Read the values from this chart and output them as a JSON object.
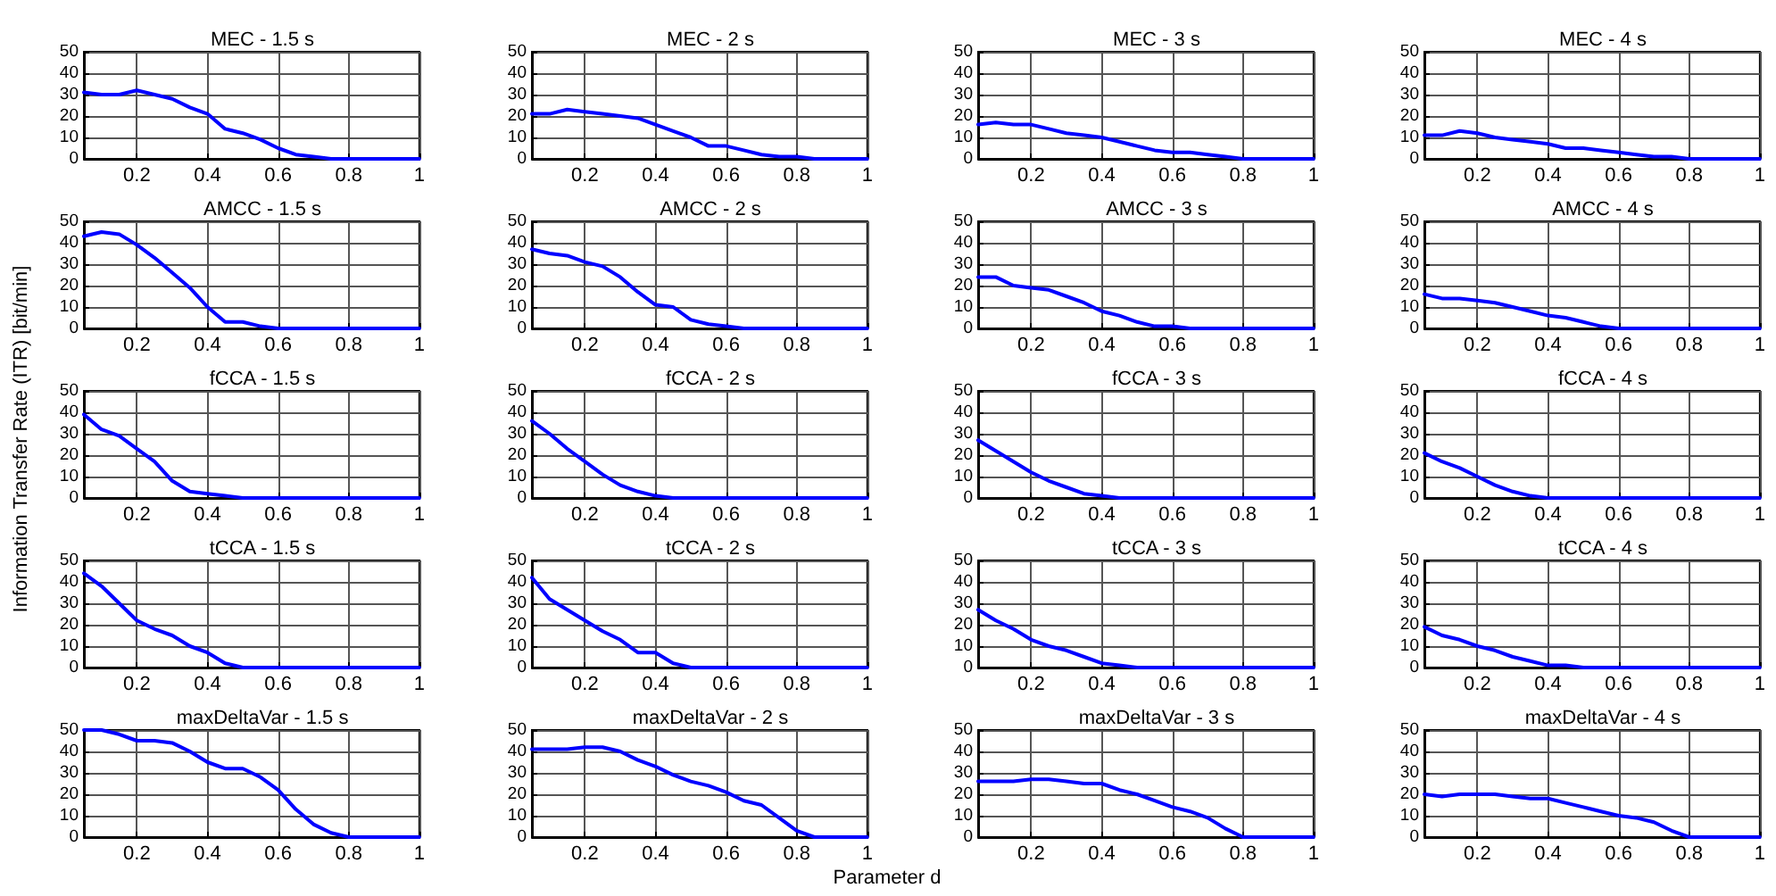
{
  "chart_data": [
    {
      "type": "line",
      "title": "MEC - 1.5 s",
      "x": [
        0.05,
        0.1,
        0.15,
        0.2,
        0.25,
        0.3,
        0.35,
        0.4,
        0.45,
        0.5,
        0.55,
        0.6,
        0.65,
        0.7,
        0.75,
        0.8,
        0.85,
        0.9,
        0.95,
        1
      ],
      "series": [
        {
          "color": "#0000ff",
          "values": [
            31,
            30,
            30,
            32,
            30,
            28,
            24,
            21,
            14,
            12,
            9,
            5,
            2,
            1,
            0,
            0,
            0,
            0,
            0,
            0
          ]
        }
      ],
      "xlim": [
        0.05,
        1
      ],
      "ylim": [
        0,
        50
      ],
      "xticks": [
        0.2,
        0.4,
        0.6,
        0.8,
        1
      ],
      "yticks": [
        0,
        10,
        20,
        30,
        40,
        50
      ],
      "grid": true,
      "marker": "none"
    },
    {
      "type": "line",
      "title": "MEC - 2 s",
      "x": [
        0.05,
        0.1,
        0.15,
        0.2,
        0.25,
        0.3,
        0.35,
        0.4,
        0.45,
        0.5,
        0.55,
        0.6,
        0.65,
        0.7,
        0.75,
        0.8,
        0.85,
        0.9,
        0.95,
        1
      ],
      "series": [
        {
          "color": "#0000ff",
          "values": [
            21,
            21,
            23,
            22,
            21,
            20,
            19,
            16,
            13,
            10,
            6,
            6,
            4,
            2,
            1,
            1,
            0,
            0,
            0,
            0
          ]
        }
      ],
      "xlim": [
        0.05,
        1
      ],
      "ylim": [
        0,
        50
      ],
      "xticks": [
        0.2,
        0.4,
        0.6,
        0.8,
        1
      ],
      "yticks": [
        0,
        10,
        20,
        30,
        40,
        50
      ],
      "grid": true,
      "marker": "none"
    },
    {
      "type": "line",
      "title": "MEC - 3 s",
      "x": [
        0.05,
        0.1,
        0.15,
        0.2,
        0.25,
        0.3,
        0.35,
        0.4,
        0.45,
        0.5,
        0.55,
        0.6,
        0.65,
        0.7,
        0.75,
        0.8,
        0.85,
        0.9,
        0.95,
        1
      ],
      "series": [
        {
          "color": "#0000ff",
          "values": [
            16,
            17,
            16,
            16,
            14,
            12,
            11,
            10,
            8,
            6,
            4,
            3,
            3,
            2,
            1,
            0,
            0,
            0,
            0,
            0
          ]
        }
      ],
      "xlim": [
        0.05,
        1
      ],
      "ylim": [
        0,
        50
      ],
      "xticks": [
        0.2,
        0.4,
        0.6,
        0.8,
        1
      ],
      "yticks": [
        0,
        10,
        20,
        30,
        40,
        50
      ],
      "grid": true,
      "marker": "none"
    },
    {
      "type": "line",
      "title": "MEC - 4 s",
      "x": [
        0.05,
        0.1,
        0.15,
        0.2,
        0.25,
        0.3,
        0.35,
        0.4,
        0.45,
        0.5,
        0.55,
        0.6,
        0.65,
        0.7,
        0.75,
        0.8,
        0.85,
        0.9,
        0.95,
        1
      ],
      "series": [
        {
          "color": "#0000ff",
          "values": [
            11,
            11,
            13,
            12,
            10,
            9,
            8,
            7,
            5,
            5,
            4,
            3,
            2,
            1,
            1,
            0,
            0,
            0,
            0,
            0
          ]
        }
      ],
      "xlim": [
        0.05,
        1
      ],
      "ylim": [
        0,
        50
      ],
      "xticks": [
        0.2,
        0.4,
        0.6,
        0.8,
        1
      ],
      "yticks": [
        0,
        10,
        20,
        30,
        40,
        50
      ],
      "grid": true,
      "marker": "none"
    },
    {
      "type": "line",
      "title": "AMCC - 1.5 s",
      "x": [
        0.05,
        0.1,
        0.15,
        0.2,
        0.25,
        0.3,
        0.35,
        0.4,
        0.45,
        0.5,
        0.55,
        0.6,
        0.65,
        0.7,
        0.75,
        0.8,
        0.85,
        0.9,
        0.95,
        1
      ],
      "series": [
        {
          "color": "#0000ff",
          "values": [
            43,
            45,
            44,
            39,
            33,
            26,
            19,
            10,
            3,
            3,
            1,
            0,
            0,
            0,
            0,
            0,
            0,
            0,
            0,
            0
          ]
        }
      ],
      "xlim": [
        0.05,
        1
      ],
      "ylim": [
        0,
        50
      ],
      "xticks": [
        0.2,
        0.4,
        0.6,
        0.8,
        1
      ],
      "yticks": [
        0,
        10,
        20,
        30,
        40,
        50
      ],
      "grid": true,
      "marker": "none"
    },
    {
      "type": "line",
      "title": "AMCC - 2 s",
      "x": [
        0.05,
        0.1,
        0.15,
        0.2,
        0.25,
        0.3,
        0.35,
        0.4,
        0.45,
        0.5,
        0.55,
        0.6,
        0.65,
        0.7,
        0.75,
        0.8,
        0.85,
        0.9,
        0.95,
        1
      ],
      "series": [
        {
          "color": "#0000ff",
          "values": [
            37,
            35,
            34,
            31,
            29,
            24,
            17,
            11,
            10,
            4,
            2,
            1,
            0,
            0,
            0,
            0,
            0,
            0,
            0,
            0
          ]
        }
      ],
      "xlim": [
        0.05,
        1
      ],
      "ylim": [
        0,
        50
      ],
      "xticks": [
        0.2,
        0.4,
        0.6,
        0.8,
        1
      ],
      "yticks": [
        0,
        10,
        20,
        30,
        40,
        50
      ],
      "grid": true,
      "marker": "none"
    },
    {
      "type": "line",
      "title": "AMCC - 3 s",
      "x": [
        0.05,
        0.1,
        0.15,
        0.2,
        0.25,
        0.3,
        0.35,
        0.4,
        0.45,
        0.5,
        0.55,
        0.6,
        0.65,
        0.7,
        0.75,
        0.8,
        0.85,
        0.9,
        0.95,
        1
      ],
      "series": [
        {
          "color": "#0000ff",
          "values": [
            24,
            24,
            20,
            19,
            18,
            15,
            12,
            8,
            6,
            3,
            1,
            1,
            0,
            0,
            0,
            0,
            0,
            0,
            0,
            0
          ]
        }
      ],
      "xlim": [
        0.05,
        1
      ],
      "ylim": [
        0,
        50
      ],
      "xticks": [
        0.2,
        0.4,
        0.6,
        0.8,
        1
      ],
      "yticks": [
        0,
        10,
        20,
        30,
        40,
        50
      ],
      "grid": true,
      "marker": "none"
    },
    {
      "type": "line",
      "title": "AMCC - 4 s",
      "x": [
        0.05,
        0.1,
        0.15,
        0.2,
        0.25,
        0.3,
        0.35,
        0.4,
        0.45,
        0.5,
        0.55,
        0.6,
        0.65,
        0.7,
        0.75,
        0.8,
        0.85,
        0.9,
        0.95,
        1
      ],
      "series": [
        {
          "color": "#0000ff",
          "values": [
            16,
            14,
            14,
            13,
            12,
            10,
            8,
            6,
            5,
            3,
            1,
            0,
            0,
            0,
            0,
            0,
            0,
            0,
            0,
            0
          ]
        }
      ],
      "xlim": [
        0.05,
        1
      ],
      "ylim": [
        0,
        50
      ],
      "xticks": [
        0.2,
        0.4,
        0.6,
        0.8,
        1
      ],
      "yticks": [
        0,
        10,
        20,
        30,
        40,
        50
      ],
      "grid": true,
      "marker": "none"
    },
    {
      "type": "line",
      "title": "fCCA - 1.5 s",
      "ylabel": "Information Transfer Rate (ITR) [bit/min]",
      "x": [
        0.05,
        0.1,
        0.15,
        0.2,
        0.25,
        0.3,
        0.35,
        0.4,
        0.45,
        0.5,
        0.55,
        0.6,
        0.65,
        0.7,
        0.75,
        0.8,
        0.85,
        0.9,
        0.95,
        1
      ],
      "series": [
        {
          "color": "#0000ff",
          "values": [
            39,
            32,
            29,
            23,
            17,
            8,
            3,
            2,
            1,
            0,
            0,
            0,
            0,
            0,
            0,
            0,
            0,
            0,
            0,
            0
          ]
        }
      ],
      "xlim": [
        0.05,
        1
      ],
      "ylim": [
        0,
        50
      ],
      "xticks": [
        0.2,
        0.4,
        0.6,
        0.8,
        1
      ],
      "yticks": [
        0,
        10,
        20,
        30,
        40,
        50
      ],
      "grid": true,
      "marker": "none"
    },
    {
      "type": "line",
      "title": "fCCA - 2 s",
      "x": [
        0.05,
        0.1,
        0.15,
        0.2,
        0.25,
        0.3,
        0.35,
        0.4,
        0.45,
        0.5,
        0.55,
        0.6,
        0.65,
        0.7,
        0.75,
        0.8,
        0.85,
        0.9,
        0.95,
        1
      ],
      "series": [
        {
          "color": "#0000ff",
          "values": [
            36,
            30,
            23,
            17,
            11,
            6,
            3,
            1,
            0,
            0,
            0,
            0,
            0,
            0,
            0,
            0,
            0,
            0,
            0,
            0
          ]
        }
      ],
      "xlim": [
        0.05,
        1
      ],
      "ylim": [
        0,
        50
      ],
      "xticks": [
        0.2,
        0.4,
        0.6,
        0.8,
        1
      ],
      "yticks": [
        0,
        10,
        20,
        30,
        40,
        50
      ],
      "grid": true,
      "marker": "none"
    },
    {
      "type": "line",
      "title": "fCCA - 3 s",
      "x": [
        0.05,
        0.1,
        0.15,
        0.2,
        0.25,
        0.3,
        0.35,
        0.4,
        0.45,
        0.5,
        0.55,
        0.6,
        0.65,
        0.7,
        0.75,
        0.8,
        0.85,
        0.9,
        0.95,
        1
      ],
      "series": [
        {
          "color": "#0000ff",
          "values": [
            27,
            22,
            17,
            12,
            8,
            5,
            2,
            1,
            0,
            0,
            0,
            0,
            0,
            0,
            0,
            0,
            0,
            0,
            0,
            0
          ]
        }
      ],
      "xlim": [
        0.05,
        1
      ],
      "ylim": [
        0,
        50
      ],
      "xticks": [
        0.2,
        0.4,
        0.6,
        0.8,
        1
      ],
      "yticks": [
        0,
        10,
        20,
        30,
        40,
        50
      ],
      "grid": true,
      "marker": "none"
    },
    {
      "type": "line",
      "title": "fCCA - 4 s",
      "x": [
        0.05,
        0.1,
        0.15,
        0.2,
        0.25,
        0.3,
        0.35,
        0.4,
        0.45,
        0.5,
        0.55,
        0.6,
        0.65,
        0.7,
        0.75,
        0.8,
        0.85,
        0.9,
        0.95,
        1
      ],
      "series": [
        {
          "color": "#0000ff",
          "values": [
            21,
            17,
            14,
            10,
            6,
            3,
            1,
            0,
            0,
            0,
            0,
            0,
            0,
            0,
            0,
            0,
            0,
            0,
            0,
            0
          ]
        }
      ],
      "xlim": [
        0.05,
        1
      ],
      "ylim": [
        0,
        50
      ],
      "xticks": [
        0.2,
        0.4,
        0.6,
        0.8,
        1
      ],
      "yticks": [
        0,
        10,
        20,
        30,
        40,
        50
      ],
      "grid": true,
      "marker": "none"
    },
    {
      "type": "line",
      "title": "tCCA - 1.5 s",
      "x": [
        0.05,
        0.1,
        0.15,
        0.2,
        0.25,
        0.3,
        0.35,
        0.4,
        0.45,
        0.5,
        0.55,
        0.6,
        0.65,
        0.7,
        0.75,
        0.8,
        0.85,
        0.9,
        0.95,
        1
      ],
      "series": [
        {
          "color": "#0000ff",
          "values": [
            44,
            38,
            30,
            22,
            18,
            15,
            10,
            7,
            2,
            0,
            0,
            0,
            0,
            0,
            0,
            0,
            0,
            0,
            0,
            0
          ]
        }
      ],
      "xlim": [
        0.05,
        1
      ],
      "ylim": [
        0,
        50
      ],
      "xticks": [
        0.2,
        0.4,
        0.6,
        0.8,
        1
      ],
      "yticks": [
        0,
        10,
        20,
        30,
        40,
        50
      ],
      "grid": true,
      "marker": "none"
    },
    {
      "type": "line",
      "title": "tCCA - 2 s",
      "x": [
        0.05,
        0.1,
        0.15,
        0.2,
        0.25,
        0.3,
        0.35,
        0.4,
        0.45,
        0.5,
        0.55,
        0.6,
        0.65,
        0.7,
        0.75,
        0.8,
        0.85,
        0.9,
        0.95,
        1
      ],
      "series": [
        {
          "color": "#0000ff",
          "values": [
            42,
            32,
            27,
            22,
            17,
            13,
            7,
            7,
            2,
            0,
            0,
            0,
            0,
            0,
            0,
            0,
            0,
            0,
            0,
            0
          ]
        }
      ],
      "xlim": [
        0.05,
        1
      ],
      "ylim": [
        0,
        50
      ],
      "xticks": [
        0.2,
        0.4,
        0.6,
        0.8,
        1
      ],
      "yticks": [
        0,
        10,
        20,
        30,
        40,
        50
      ],
      "grid": true,
      "marker": "none"
    },
    {
      "type": "line",
      "title": "tCCA - 3 s",
      "x": [
        0.05,
        0.1,
        0.15,
        0.2,
        0.25,
        0.3,
        0.35,
        0.4,
        0.45,
        0.5,
        0.55,
        0.6,
        0.65,
        0.7,
        0.75,
        0.8,
        0.85,
        0.9,
        0.95,
        1
      ],
      "series": [
        {
          "color": "#0000ff",
          "values": [
            27,
            22,
            18,
            13,
            10,
            8,
            5,
            2,
            1,
            0,
            0,
            0,
            0,
            0,
            0,
            0,
            0,
            0,
            0,
            0
          ]
        }
      ],
      "xlim": [
        0.05,
        1
      ],
      "ylim": [
        0,
        50
      ],
      "xticks": [
        0.2,
        0.4,
        0.6,
        0.8,
        1
      ],
      "yticks": [
        0,
        10,
        20,
        30,
        40,
        50
      ],
      "grid": true,
      "marker": "none"
    },
    {
      "type": "line",
      "title": "tCCA - 4 s",
      "x": [
        0.05,
        0.1,
        0.15,
        0.2,
        0.25,
        0.3,
        0.35,
        0.4,
        0.45,
        0.5,
        0.55,
        0.6,
        0.65,
        0.7,
        0.75,
        0.8,
        0.85,
        0.9,
        0.95,
        1
      ],
      "series": [
        {
          "color": "#0000ff",
          "values": [
            19,
            15,
            13,
            10,
            8,
            5,
            3,
            1,
            1,
            0,
            0,
            0,
            0,
            0,
            0,
            0,
            0,
            0,
            0,
            0
          ]
        }
      ],
      "xlim": [
        0.05,
        1
      ],
      "ylim": [
        0,
        50
      ],
      "xticks": [
        0.2,
        0.4,
        0.6,
        0.8,
        1
      ],
      "yticks": [
        0,
        10,
        20,
        30,
        40,
        50
      ],
      "grid": true,
      "marker": "none"
    },
    {
      "type": "line",
      "title": "maxDeltaVar - 1.5 s",
      "x": [
        0.05,
        0.1,
        0.15,
        0.2,
        0.25,
        0.3,
        0.35,
        0.4,
        0.45,
        0.5,
        0.55,
        0.6,
        0.65,
        0.7,
        0.75,
        0.8,
        0.85,
        0.9,
        0.95,
        1
      ],
      "series": [
        {
          "color": "#0000ff",
          "values": [
            50,
            50,
            48,
            45,
            45,
            44,
            40,
            35,
            32,
            32,
            28,
            22,
            13,
            6,
            2,
            0,
            0,
            0,
            0,
            0
          ]
        }
      ],
      "xlim": [
        0.05,
        1
      ],
      "ylim": [
        0,
        50
      ],
      "xticks": [
        0.2,
        0.4,
        0.6,
        0.8,
        1
      ],
      "yticks": [
        0,
        10,
        20,
        30,
        40,
        50
      ],
      "grid": true,
      "marker": "none"
    },
    {
      "type": "line",
      "title": "maxDeltaVar - 2 s",
      "xlabel": "Parameter d",
      "x": [
        0.05,
        0.1,
        0.15,
        0.2,
        0.25,
        0.3,
        0.35,
        0.4,
        0.45,
        0.5,
        0.55,
        0.6,
        0.65,
        0.7,
        0.75,
        0.8,
        0.85,
        0.9,
        0.95,
        1
      ],
      "series": [
        {
          "color": "#0000ff",
          "values": [
            41,
            41,
            41,
            42,
            42,
            40,
            36,
            33,
            29,
            26,
            24,
            21,
            17,
            15,
            9,
            3,
            0,
            0,
            0,
            0
          ]
        }
      ],
      "xlim": [
        0.05,
        1
      ],
      "ylim": [
        0,
        50
      ],
      "xticks": [
        0.2,
        0.4,
        0.6,
        0.8,
        1
      ],
      "yticks": [
        0,
        10,
        20,
        30,
        40,
        50
      ],
      "grid": true,
      "marker": "none"
    },
    {
      "type": "line",
      "title": "maxDeltaVar - 3 s",
      "x": [
        0.05,
        0.1,
        0.15,
        0.2,
        0.25,
        0.3,
        0.35,
        0.4,
        0.45,
        0.5,
        0.55,
        0.6,
        0.65,
        0.7,
        0.75,
        0.8,
        0.85,
        0.9,
        0.95,
        1
      ],
      "series": [
        {
          "color": "#0000ff",
          "values": [
            26,
            26,
            26,
            27,
            27,
            26,
            25,
            25,
            22,
            20,
            17,
            14,
            12,
            9,
            4,
            0,
            0,
            0,
            0,
            0
          ]
        }
      ],
      "xlim": [
        0.05,
        1
      ],
      "ylim": [
        0,
        50
      ],
      "xticks": [
        0.2,
        0.4,
        0.6,
        0.8,
        1
      ],
      "yticks": [
        0,
        10,
        20,
        30,
        40,
        50
      ],
      "grid": true,
      "marker": "none"
    },
    {
      "type": "line",
      "title": "maxDeltaVar - 4 s",
      "x": [
        0.05,
        0.1,
        0.15,
        0.2,
        0.25,
        0.3,
        0.35,
        0.4,
        0.45,
        0.5,
        0.55,
        0.6,
        0.65,
        0.7,
        0.75,
        0.8,
        0.85,
        0.9,
        0.95,
        1
      ],
      "series": [
        {
          "color": "#0000ff",
          "values": [
            20,
            19,
            20,
            20,
            20,
            19,
            18,
            18,
            16,
            14,
            12,
            10,
            9,
            7,
            3,
            0,
            0,
            0,
            0,
            0
          ]
        }
      ],
      "xlim": [
        0.05,
        1
      ],
      "ylim": [
        0,
        50
      ],
      "xticks": [
        0.2,
        0.4,
        0.6,
        0.8,
        1
      ],
      "yticks": [
        0,
        10,
        20,
        30,
        40,
        50
      ],
      "grid": true,
      "marker": "none"
    }
  ]
}
